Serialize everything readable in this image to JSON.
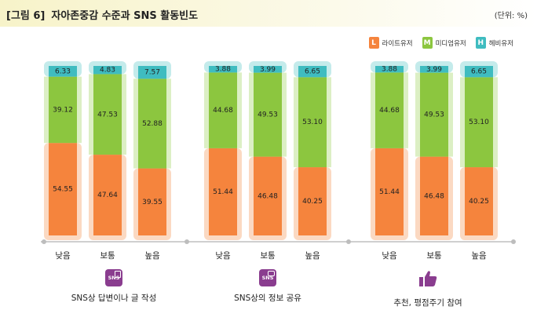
{
  "header": {
    "figure_label": "[그림 6]",
    "title": "자아존중감 수준과 SNS 활동빈도",
    "unit": "(단위: %)"
  },
  "legend": [
    {
      "letter": "L",
      "label": "라이트유저",
      "color": "#f5843d"
    },
    {
      "letter": "M",
      "label": "미디엄유저",
      "color": "#8cc63f"
    },
    {
      "letter": "H",
      "label": "헤비유저",
      "color": "#3fbcc0"
    }
  ],
  "colors": {
    "light": "#f5843d",
    "light_bg": "#fbd9c2",
    "medium": "#8cc63f",
    "medium_bg": "#dcefc4",
    "heavy": "#3fbcc0",
    "heavy_bg": "#c4ebeb",
    "axis": "#cfcfcf"
  },
  "chart_data": {
    "type": "bar",
    "stacked": true,
    "ylim": [
      0,
      100
    ],
    "series_names": [
      "라이트유저",
      "미디엄유저",
      "헤비유저"
    ],
    "groups": [
      {
        "name": "SNS상 답변이나 글 작성",
        "icon": "sns-post-icon",
        "categories": [
          "낮음",
          "보통",
          "높음"
        ],
        "light": [
          54.55,
          47.64,
          39.55
        ],
        "medium": [
          39.12,
          47.53,
          52.88
        ],
        "heavy": [
          6.33,
          4.83,
          7.57
        ]
      },
      {
        "name": "SNS상의 정보 공유",
        "icon": "sns-share-icon",
        "categories": [
          "낮음",
          "보통",
          "높음"
        ],
        "light": [
          51.44,
          46.48,
          40.25
        ],
        "medium": [
          44.68,
          49.53,
          53.1
        ],
        "heavy": [
          3.88,
          3.99,
          6.65
        ]
      },
      {
        "name": "추천, 평점주기 참여",
        "icon": "thumbs-up-icon",
        "categories": [
          "낮음",
          "보통",
          "높음"
        ],
        "light": [
          51.44,
          46.48,
          40.25
        ],
        "medium": [
          44.68,
          49.53,
          53.1
        ],
        "heavy": [
          3.88,
          3.99,
          6.65
        ]
      }
    ]
  },
  "group_icons": [
    "SNS",
    "SNS"
  ]
}
